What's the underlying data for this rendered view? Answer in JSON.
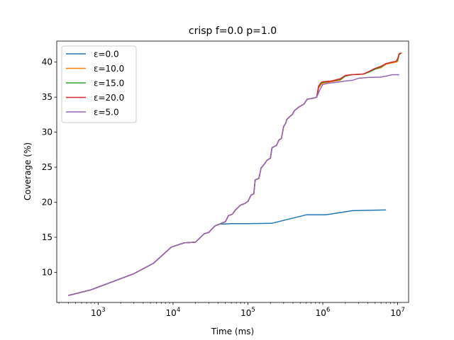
{
  "chart_data": {
    "type": "line",
    "title": "crisp f=0.0 p=1.0",
    "xlabel": "Time (ms)",
    "ylabel": "Coverage (%)",
    "x_scale": "log",
    "xlim": [
      280,
      14000000
    ],
    "ylim": [
      5.7,
      43.0
    ],
    "x_ticks": [
      {
        "value": 1000,
        "mant": "10",
        "exp": "3"
      },
      {
        "value": 10000,
        "mant": "10",
        "exp": "4"
      },
      {
        "value": 100000,
        "mant": "10",
        "exp": "5"
      },
      {
        "value": 1000000,
        "mant": "10",
        "exp": "6"
      },
      {
        "value": 10000000,
        "mant": "10",
        "exp": "7"
      }
    ],
    "y_ticks": [
      {
        "value": 10,
        "label": "10"
      },
      {
        "value": 15,
        "label": "15"
      },
      {
        "value": 20,
        "label": "20"
      },
      {
        "value": 25,
        "label": "25"
      },
      {
        "value": 30,
        "label": "30"
      },
      {
        "value": 35,
        "label": "35"
      },
      {
        "value": 40,
        "label": "40"
      }
    ],
    "grid": false,
    "legend_position": "top-left",
    "series": [
      {
        "name": "ε=0.0",
        "color": "#1f77b4",
        "points": [
          [
            400,
            6.7
          ],
          [
            800,
            7.5
          ],
          [
            3000,
            9.8
          ],
          [
            5500,
            11.3
          ],
          [
            9500,
            13.6
          ],
          [
            14000,
            14.2
          ],
          [
            20000,
            14.3
          ],
          [
            26000,
            15.5
          ],
          [
            30000,
            15.7
          ],
          [
            36000,
            16.6
          ],
          [
            42000,
            16.9
          ],
          [
            48000,
            16.9
          ],
          [
            60000,
            16.95
          ],
          [
            100000,
            16.95
          ],
          [
            210000,
            17.0
          ],
          [
            600000,
            18.2
          ],
          [
            1100000,
            18.2
          ],
          [
            2500000,
            18.8
          ],
          [
            7000000,
            18.9
          ]
        ]
      },
      {
        "name": "ε=10.0",
        "color": "#ff7f0e",
        "points": [
          [
            400,
            6.7
          ],
          [
            800,
            7.5
          ],
          [
            3000,
            9.8
          ],
          [
            5500,
            11.3
          ],
          [
            9500,
            13.6
          ],
          [
            14000,
            14.2
          ],
          [
            20000,
            14.3
          ],
          [
            26000,
            15.5
          ],
          [
            30000,
            15.7
          ],
          [
            36000,
            16.6
          ],
          [
            42000,
            16.9
          ],
          [
            50000,
            17.2
          ],
          [
            55000,
            18.1
          ],
          [
            62000,
            18.3
          ],
          [
            68000,
            18.9
          ],
          [
            80000,
            19.6
          ],
          [
            90000,
            19.8
          ],
          [
            100000,
            20.1
          ],
          [
            110000,
            21.0
          ],
          [
            120000,
            21.2
          ],
          [
            125000,
            23.2
          ],
          [
            140000,
            23.4
          ],
          [
            150000,
            24.9
          ],
          [
            165000,
            25.4
          ],
          [
            180000,
            26.0
          ],
          [
            200000,
            26.3
          ],
          [
            210000,
            27.8
          ],
          [
            240000,
            28.1
          ],
          [
            260000,
            28.9
          ],
          [
            280000,
            29.1
          ],
          [
            300000,
            30.8
          ],
          [
            320000,
            31.3
          ],
          [
            330000,
            31.8
          ],
          [
            360000,
            32.2
          ],
          [
            390000,
            32.5
          ],
          [
            420000,
            33.1
          ],
          [
            480000,
            33.6
          ],
          [
            560000,
            34.0
          ],
          [
            620000,
            34.7
          ],
          [
            700000,
            34.8
          ],
          [
            780000,
            34.9
          ],
          [
            830000,
            35.0
          ],
          [
            880000,
            36.3
          ],
          [
            950000,
            36.8
          ],
          [
            1000000,
            37.0
          ],
          [
            1300000,
            37.2
          ],
          [
            1700000,
            37.4
          ],
          [
            2000000,
            38.0
          ],
          [
            2400000,
            38.2
          ],
          [
            3500000,
            38.3
          ],
          [
            4200000,
            38.6
          ],
          [
            5000000,
            39.0
          ],
          [
            6000000,
            39.2
          ],
          [
            7000000,
            39.7
          ],
          [
            8500000,
            39.9
          ],
          [
            9500000,
            40.0
          ],
          [
            10000000,
            40.1
          ],
          [
            10500000,
            41.2
          ],
          [
            11500000,
            41.3
          ]
        ]
      },
      {
        "name": "ε=15.0",
        "color": "#2ca02c",
        "points": [
          [
            400,
            6.7
          ],
          [
            800,
            7.5
          ],
          [
            3000,
            9.8
          ],
          [
            5500,
            11.3
          ],
          [
            9500,
            13.6
          ],
          [
            14000,
            14.2
          ],
          [
            20000,
            14.3
          ],
          [
            26000,
            15.5
          ],
          [
            30000,
            15.7
          ],
          [
            36000,
            16.6
          ],
          [
            42000,
            16.9
          ],
          [
            50000,
            17.2
          ],
          [
            55000,
            18.1
          ],
          [
            62000,
            18.3
          ],
          [
            68000,
            18.9
          ],
          [
            80000,
            19.6
          ],
          [
            90000,
            19.8
          ],
          [
            100000,
            20.1
          ],
          [
            110000,
            21.0
          ],
          [
            120000,
            21.2
          ],
          [
            125000,
            23.2
          ],
          [
            140000,
            23.4
          ],
          [
            150000,
            24.9
          ],
          [
            165000,
            25.4
          ],
          [
            180000,
            26.0
          ],
          [
            200000,
            26.3
          ],
          [
            210000,
            27.8
          ],
          [
            240000,
            28.1
          ],
          [
            260000,
            28.9
          ],
          [
            280000,
            29.1
          ],
          [
            300000,
            30.8
          ],
          [
            320000,
            31.3
          ],
          [
            330000,
            31.8
          ],
          [
            360000,
            32.2
          ],
          [
            390000,
            32.5
          ],
          [
            420000,
            33.1
          ],
          [
            480000,
            33.6
          ],
          [
            560000,
            34.0
          ],
          [
            620000,
            34.7
          ],
          [
            700000,
            34.8
          ],
          [
            780000,
            34.9
          ],
          [
            830000,
            35.0
          ],
          [
            880000,
            36.5
          ],
          [
            950000,
            37.0
          ],
          [
            1000000,
            37.1
          ],
          [
            1300000,
            37.3
          ],
          [
            1700000,
            37.5
          ],
          [
            2000000,
            38.0
          ],
          [
            2400000,
            38.2
          ],
          [
            3500000,
            38.3
          ],
          [
            4200000,
            38.6
          ],
          [
            5000000,
            39.0
          ],
          [
            6000000,
            39.3
          ],
          [
            7000000,
            39.8
          ],
          [
            8500000,
            40.0
          ],
          [
            9500000,
            40.1
          ],
          [
            10000000,
            40.3
          ],
          [
            10500000,
            41.1
          ],
          [
            11000000,
            41.2
          ]
        ]
      },
      {
        "name": "ε=20.0",
        "color": "#d62728",
        "points": [
          [
            400,
            6.7
          ],
          [
            800,
            7.5
          ],
          [
            3000,
            9.8
          ],
          [
            5500,
            11.3
          ],
          [
            9500,
            13.6
          ],
          [
            14000,
            14.2
          ],
          [
            20000,
            14.3
          ],
          [
            26000,
            15.5
          ],
          [
            30000,
            15.7
          ],
          [
            36000,
            16.6
          ],
          [
            42000,
            16.9
          ],
          [
            50000,
            17.2
          ],
          [
            55000,
            18.1
          ],
          [
            62000,
            18.3
          ],
          [
            68000,
            18.9
          ],
          [
            80000,
            19.6
          ],
          [
            90000,
            19.8
          ],
          [
            100000,
            20.1
          ],
          [
            110000,
            21.0
          ],
          [
            120000,
            21.2
          ],
          [
            125000,
            23.2
          ],
          [
            140000,
            23.4
          ],
          [
            150000,
            24.9
          ],
          [
            165000,
            25.4
          ],
          [
            180000,
            26.0
          ],
          [
            200000,
            26.3
          ],
          [
            210000,
            27.8
          ],
          [
            240000,
            28.1
          ],
          [
            260000,
            28.9
          ],
          [
            280000,
            29.1
          ],
          [
            300000,
            30.8
          ],
          [
            320000,
            31.3
          ],
          [
            330000,
            31.8
          ],
          [
            360000,
            32.2
          ],
          [
            390000,
            32.5
          ],
          [
            420000,
            33.1
          ],
          [
            480000,
            33.6
          ],
          [
            560000,
            34.0
          ],
          [
            620000,
            34.7
          ],
          [
            700000,
            34.8
          ],
          [
            780000,
            34.9
          ],
          [
            830000,
            35.0
          ],
          [
            880000,
            36.6
          ],
          [
            950000,
            37.1
          ],
          [
            1000000,
            37.2
          ],
          [
            1300000,
            37.3
          ],
          [
            1700000,
            37.6
          ],
          [
            2000000,
            38.1
          ],
          [
            2400000,
            38.2
          ],
          [
            3500000,
            38.3
          ],
          [
            4200000,
            38.7
          ],
          [
            5000000,
            39.1
          ],
          [
            6000000,
            39.4
          ],
          [
            7000000,
            39.8
          ],
          [
            8500000,
            40.0
          ],
          [
            9500000,
            40.1
          ],
          [
            10000000,
            40.5
          ],
          [
            10500000,
            41.2
          ],
          [
            11200000,
            41.3
          ]
        ]
      },
      {
        "name": "ε=5.0",
        "color": "#9467bd",
        "points": [
          [
            400,
            6.7
          ],
          [
            800,
            7.5
          ],
          [
            3000,
            9.8
          ],
          [
            5500,
            11.3
          ],
          [
            9500,
            13.6
          ],
          [
            14000,
            14.2
          ],
          [
            20000,
            14.3
          ],
          [
            26000,
            15.5
          ],
          [
            30000,
            15.7
          ],
          [
            36000,
            16.6
          ],
          [
            42000,
            16.9
          ],
          [
            50000,
            17.2
          ],
          [
            55000,
            18.1
          ],
          [
            62000,
            18.3
          ],
          [
            68000,
            18.9
          ],
          [
            80000,
            19.6
          ],
          [
            90000,
            19.8
          ],
          [
            100000,
            20.1
          ],
          [
            110000,
            21.0
          ],
          [
            120000,
            21.2
          ],
          [
            125000,
            23.2
          ],
          [
            140000,
            23.4
          ],
          [
            150000,
            24.9
          ],
          [
            165000,
            25.4
          ],
          [
            180000,
            26.0
          ],
          [
            200000,
            26.3
          ],
          [
            210000,
            27.8
          ],
          [
            240000,
            28.1
          ],
          [
            260000,
            28.9
          ],
          [
            280000,
            29.1
          ],
          [
            300000,
            30.8
          ],
          [
            320000,
            31.3
          ],
          [
            330000,
            31.8
          ],
          [
            360000,
            32.2
          ],
          [
            390000,
            32.5
          ],
          [
            420000,
            33.1
          ],
          [
            480000,
            33.6
          ],
          [
            560000,
            34.0
          ],
          [
            620000,
            34.7
          ],
          [
            700000,
            34.8
          ],
          [
            780000,
            34.9
          ],
          [
            830000,
            35.0
          ],
          [
            900000,
            35.9
          ],
          [
            1000000,
            36.8
          ],
          [
            1200000,
            37.0
          ],
          [
            1500000,
            37.1
          ],
          [
            2000000,
            37.3
          ],
          [
            2500000,
            37.4
          ],
          [
            3000000,
            37.7
          ],
          [
            4000000,
            37.8
          ],
          [
            6000000,
            37.85
          ],
          [
            8500000,
            38.2
          ],
          [
            10500000,
            38.2
          ]
        ]
      }
    ]
  }
}
